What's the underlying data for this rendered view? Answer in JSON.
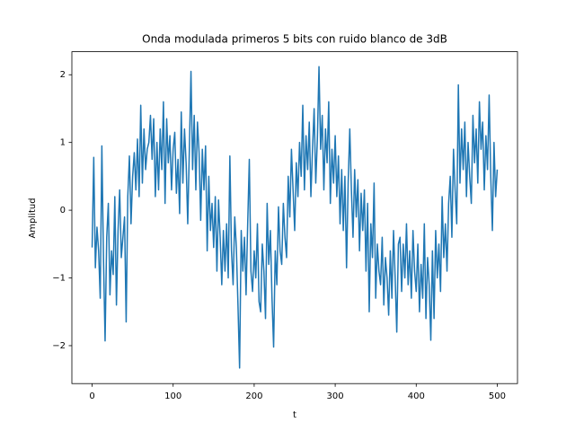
{
  "chart_data": {
    "type": "line",
    "title": "Onda modulada primeros 5 bits con ruido blanco de 3dB",
    "xlabel": "t",
    "ylabel": "Amplitud",
    "x": [
      0,
      2,
      4,
      6,
      8,
      10,
      12,
      14,
      16,
      18,
      20,
      22,
      24,
      26,
      28,
      30,
      32,
      34,
      36,
      38,
      40,
      42,
      44,
      46,
      48,
      50,
      52,
      54,
      56,
      58,
      60,
      62,
      64,
      66,
      68,
      70,
      72,
      74,
      76,
      78,
      80,
      82,
      84,
      86,
      88,
      90,
      92,
      94,
      96,
      98,
      100,
      102,
      104,
      106,
      108,
      110,
      112,
      114,
      116,
      118,
      120,
      122,
      124,
      126,
      128,
      130,
      132,
      134,
      136,
      138,
      140,
      142,
      144,
      146,
      148,
      150,
      152,
      154,
      156,
      158,
      160,
      162,
      164,
      166,
      168,
      170,
      172,
      174,
      176,
      178,
      180,
      182,
      184,
      186,
      188,
      190,
      192,
      194,
      196,
      198,
      200,
      202,
      204,
      206,
      208,
      210,
      212,
      214,
      216,
      218,
      220,
      222,
      224,
      226,
      228,
      230,
      232,
      234,
      236,
      238,
      240,
      242,
      244,
      246,
      248,
      250,
      252,
      254,
      256,
      258,
      260,
      262,
      264,
      266,
      268,
      270,
      272,
      274,
      276,
      278,
      280,
      282,
      284,
      286,
      288,
      290,
      292,
      294,
      296,
      298,
      300,
      302,
      304,
      306,
      308,
      310,
      312,
      314,
      316,
      318,
      320,
      322,
      324,
      326,
      328,
      330,
      332,
      334,
      336,
      338,
      340,
      342,
      344,
      346,
      348,
      350,
      352,
      354,
      356,
      358,
      360,
      362,
      364,
      366,
      368,
      370,
      372,
      374,
      376,
      378,
      380,
      382,
      384,
      386,
      388,
      390,
      392,
      394,
      396,
      398,
      400,
      402,
      404,
      406,
      408,
      410,
      412,
      414,
      416,
      418,
      420,
      422,
      424,
      426,
      428,
      430,
      432,
      434,
      436,
      438,
      440,
      442,
      444,
      446,
      448,
      450,
      452,
      454,
      456,
      458,
      460,
      462,
      464,
      466,
      468,
      470,
      472,
      474,
      476,
      478,
      480,
      482,
      484,
      486,
      488,
      490,
      492,
      494,
      496,
      498,
      500
    ],
    "series": [
      {
        "color": "#1f77b4",
        "values": [
          -0.55,
          0.78,
          -0.85,
          -0.25,
          -0.6,
          -1.3,
          0.95,
          -0.7,
          -1.93,
          -0.4,
          0.1,
          -1.25,
          -0.6,
          -0.95,
          0.2,
          -1.4,
          -0.3,
          0.3,
          -0.7,
          -0.4,
          -0.1,
          -1.65,
          0.2,
          0.8,
          -0.2,
          0.5,
          0.85,
          0.3,
          1.05,
          0.2,
          1.55,
          0.4,
          1.2,
          0.6,
          0.9,
          1.0,
          1.4,
          0.75,
          1.35,
          0.2,
          1.0,
          0.3,
          1.2,
          0.6,
          1.6,
          0.1,
          1.35,
          0.7,
          1.1,
          0.3,
          0.9,
          1.15,
          0.25,
          0.75,
          -0.05,
          1.45,
          0.4,
          1.2,
          0.7,
          -0.2,
          0.9,
          2.05,
          0.6,
          1.4,
          0.3,
          1.3,
          0.85,
          -0.15,
          0.9,
          0.3,
          0.95,
          -0.6,
          0.5,
          -0.3,
          0.1,
          -0.55,
          0.2,
          -0.9,
          0.15,
          -0.4,
          -1.1,
          -0.3,
          -0.9,
          -0.2,
          -1.0,
          0.8,
          -0.6,
          -1.1,
          -0.1,
          -0.55,
          -1.4,
          -2.33,
          -0.3,
          -0.9,
          -0.4,
          -1.25,
          -0.2,
          0.75,
          -0.9,
          -1.2,
          -0.6,
          -1.0,
          -0.2,
          -1.35,
          -1.5,
          -0.5,
          -0.9,
          -1.6,
          0.1,
          -0.8,
          -0.3,
          -1.3,
          -2.02,
          -0.6,
          -1.1,
          0.05,
          -0.6,
          -0.8,
          0.1,
          -0.4,
          -0.7,
          0.5,
          -0.1,
          0.9,
          0.3,
          -0.3,
          0.7,
          0.2,
          1.0,
          0.5,
          1.55,
          0.3,
          1.1,
          0.6,
          1.3,
          0.2,
          0.9,
          1.5,
          0.4,
          1.05,
          2.12,
          0.9,
          1.4,
          0.3,
          1.2,
          0.7,
          1.6,
          0.1,
          0.9,
          0.4,
          1.1,
          0.2,
          0.8,
          -0.2,
          0.6,
          -0.3,
          0.5,
          -0.85,
          0.4,
          1.2,
          0.3,
          -0.4,
          0.6,
          -0.1,
          0.45,
          -0.6,
          0.25,
          -0.3,
          0.3,
          -0.9,
          0.1,
          -1.5,
          -0.2,
          -0.7,
          0.4,
          -1.3,
          -0.5,
          -0.9,
          -1.1,
          -0.4,
          -1.4,
          -0.7,
          -1.0,
          -1.55,
          -0.6,
          -1.3,
          -0.3,
          -1.0,
          -1.8,
          -0.5,
          -0.4,
          -1.2,
          -0.5,
          -1.0,
          -0.2,
          -1.1,
          -0.6,
          -1.3,
          -0.3,
          -0.9,
          -1.2,
          -0.5,
          -1.5,
          -0.8,
          -1.3,
          -0.2,
          -1.6,
          -0.7,
          -1.1,
          -1.92,
          -0.6,
          -1.6,
          -0.3,
          -1.0,
          -0.5,
          -1.2,
          0.2,
          -0.7,
          -0.2,
          -0.9,
          0.1,
          0.5,
          -0.4,
          0.9,
          0.3,
          -0.2,
          1.85,
          0.4,
          1.2,
          0.6,
          1.3,
          0.2,
          1.0,
          0.5,
          0.1,
          1.4,
          0.7,
          1.2,
          0.4,
          1.6,
          0.9,
          1.3,
          0.3,
          1.1,
          0.6,
          1.7,
          0.5,
          -0.3,
          1.0,
          0.2,
          0.6
        ]
      }
    ],
    "xlim": [
      -25,
      525
    ],
    "xticks": [
      0,
      100,
      200,
      300,
      400,
      500
    ],
    "ylim": [
      -2.56,
      2.34
    ],
    "yticks": [
      {
        "value": -2,
        "label": "−2"
      },
      {
        "value": -1,
        "label": "−1"
      },
      0,
      1,
      2
    ]
  }
}
